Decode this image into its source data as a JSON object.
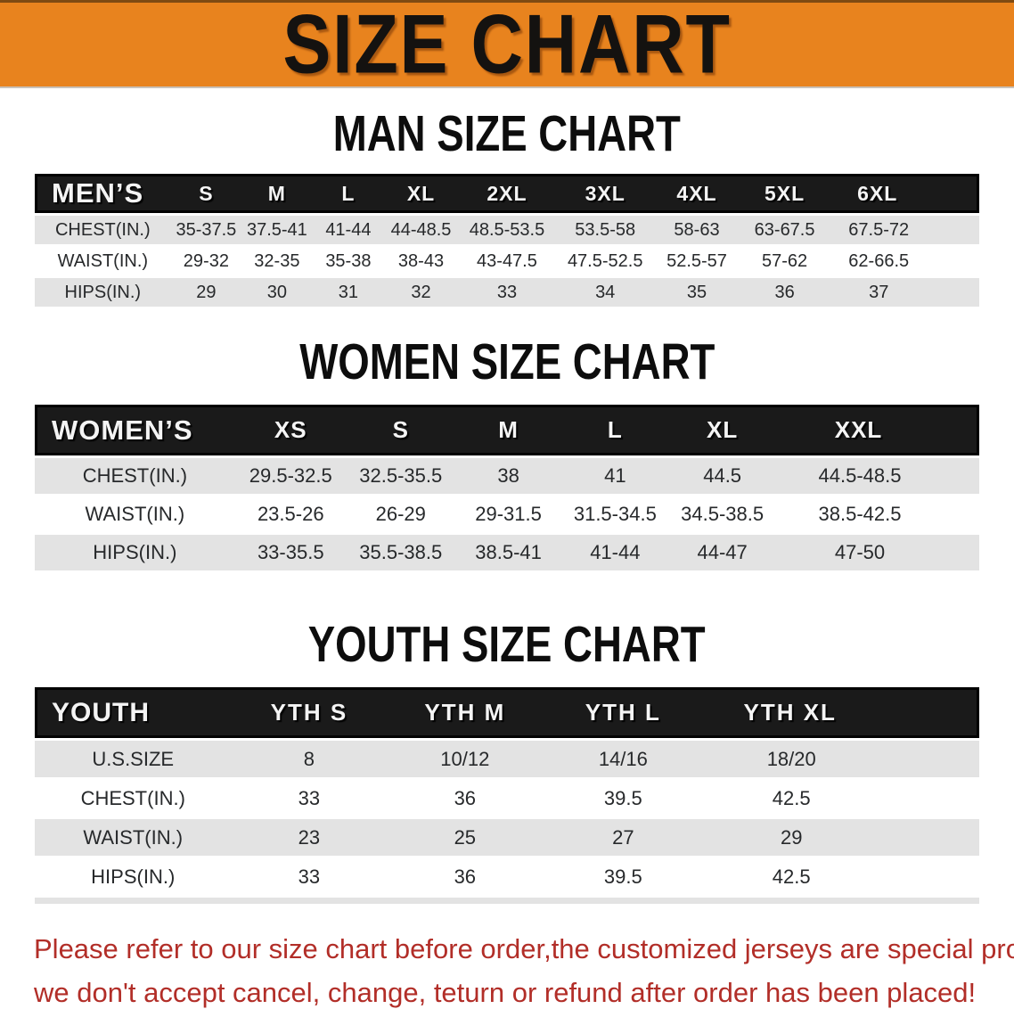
{
  "banner": {
    "title": "SIZE CHART"
  },
  "sections": [
    {
      "title": "MAN SIZE CHART",
      "table": {
        "header_label": "MEN’S",
        "columns": [
          "S",
          "M",
          "L",
          "XL",
          "2XL",
          "3XL",
          "4XL",
          "5XL",
          "6XL"
        ],
        "rows": [
          {
            "label": "CHEST(IN.)",
            "values": [
              "35-37.5",
              "37.5-41",
              "41-44",
              "44-48.5",
              "48.5-53.5",
              "53.5-58",
              "58-63",
              "63-67.5",
              "67.5-72"
            ]
          },
          {
            "label": "WAIST(IN.)",
            "values": [
              "29-32",
              "32-35",
              "35-38",
              "38-43",
              "43-47.5",
              "47.5-52.5",
              "52.5-57",
              "57-62",
              "62-66.5"
            ]
          },
          {
            "label": "HIPS(IN.)",
            "values": [
              "29",
              "30",
              "31",
              "32",
              "33",
              "34",
              "35",
              "36",
              "37"
            ]
          }
        ]
      }
    },
    {
      "title": "WOMEN SIZE CHART",
      "table": {
        "header_label": "WOMEN’S",
        "columns": [
          "XS",
          "S",
          "M",
          "L",
          "XL",
          "XXL"
        ],
        "rows": [
          {
            "label": "CHEST(IN.)",
            "values": [
              "29.5-32.5",
              "32.5-35.5",
              "38",
              "41",
              "44.5",
              "44.5-48.5"
            ]
          },
          {
            "label": "WAIST(IN.)",
            "values": [
              "23.5-26",
              "26-29",
              "29-31.5",
              "31.5-34.5",
              "34.5-38.5",
              "38.5-42.5"
            ]
          },
          {
            "label": "HIPS(IN.)",
            "values": [
              "33-35.5",
              "35.5-38.5",
              "38.5-41",
              "41-44",
              "44-47",
              "47-50"
            ]
          }
        ]
      }
    },
    {
      "title": "YOUTH SIZE CHART",
      "table": {
        "header_label": "YOUTH",
        "columns": [
          "YTH S",
          "YTH M",
          "YTH L",
          "YTH XL"
        ],
        "rows": [
          {
            "label": "U.S.SIZE",
            "values": [
              "8",
              "10/12",
              "14/16",
              "18/20"
            ]
          },
          {
            "label": "CHEST(IN.)",
            "values": [
              "33",
              "36",
              "39.5",
              "42.5"
            ]
          },
          {
            "label": "WAIST(IN.)",
            "values": [
              "23",
              "25",
              "27",
              "29"
            ]
          },
          {
            "label": "HIPS(IN.)",
            "values": [
              "33",
              "36",
              "39.5",
              "42.5"
            ]
          }
        ]
      }
    }
  ],
  "disclaimer": {
    "line1": "Please refer to our size chart before order,the customized jerseys are special products,",
    "line2": "we don't accept cancel, change, teturn or refund after order has been placed!"
  },
  "colors": {
    "banner_orange": "#E8831E",
    "table_header_black": "#1A1A1A",
    "row_stripe_gray": "#E3E3E3",
    "disclaimer_red": "#B22E28"
  }
}
